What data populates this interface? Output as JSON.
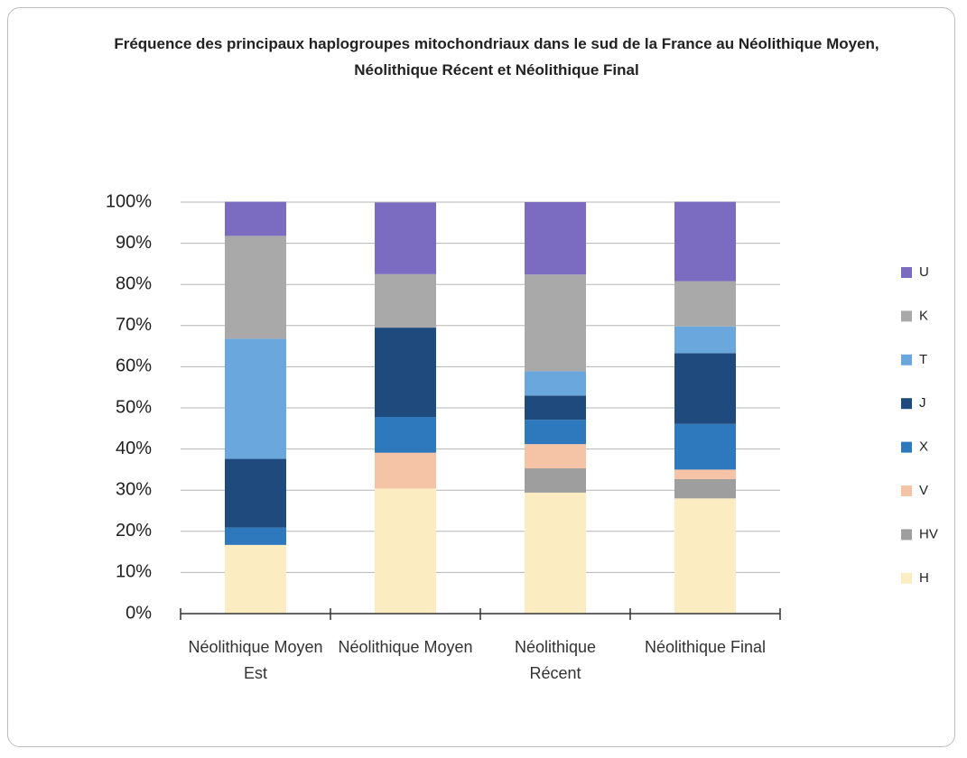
{
  "chart_data": {
    "type": "stacked_bar",
    "title": "Fréquence des principaux haplogroupes mitochondriaux dans le sud de la France au Néolithique Moyen, Néolithique Récent et Néolithique Final",
    "categories": [
      "Néolithique Moyen Est",
      "Néolithique Moyen",
      "Néolithique Récent",
      "Néolithique Final"
    ],
    "series": [
      {
        "name": "H",
        "color": "#fbecc2",
        "values": [
          16.7,
          30.4,
          29.4,
          28
        ]
      },
      {
        "name": "HV",
        "color": "#9e9e9e",
        "values": [
          0,
          0,
          5.9,
          4.7
        ]
      },
      {
        "name": "V",
        "color": "#f5c3a5",
        "values": [
          0,
          8.7,
          5.9,
          2.3
        ]
      },
      {
        "name": "X",
        "color": "#2e78bd",
        "values": [
          4.2,
          8.7,
          5.9,
          11.1
        ]
      },
      {
        "name": "J",
        "color": "#1f4a7d",
        "values": [
          16.7,
          21.7,
          5.9,
          17.2
        ]
      },
      {
        "name": "T",
        "color": "#6aa7dd",
        "values": [
          29.2,
          0,
          5.9,
          6.5
        ]
      },
      {
        "name": "K",
        "color": "#a9a9a9",
        "values": [
          25,
          13,
          23.5,
          11
        ]
      },
      {
        "name": "U",
        "color": "#7b6cc2",
        "values": [
          8.3,
          17.4,
          17.6,
          19.3
        ]
      }
    ],
    "ylim": [
      0,
      100
    ],
    "yticks": [
      {
        "value": 0,
        "label": "0%"
      },
      {
        "value": 10,
        "label": "10%"
      },
      {
        "value": 20,
        "label": "20%"
      },
      {
        "value": 30,
        "label": "30%"
      },
      {
        "value": 40,
        "label": "40%"
      },
      {
        "value": 50,
        "label": "50%"
      },
      {
        "value": 60,
        "label": "60%"
      },
      {
        "value": 70,
        "label": "70%"
      },
      {
        "value": 80,
        "label": "80%"
      },
      {
        "value": 90,
        "label": "90%"
      },
      {
        "value": 100,
        "label": "100%"
      }
    ],
    "grid": true,
    "legend": "right"
  }
}
